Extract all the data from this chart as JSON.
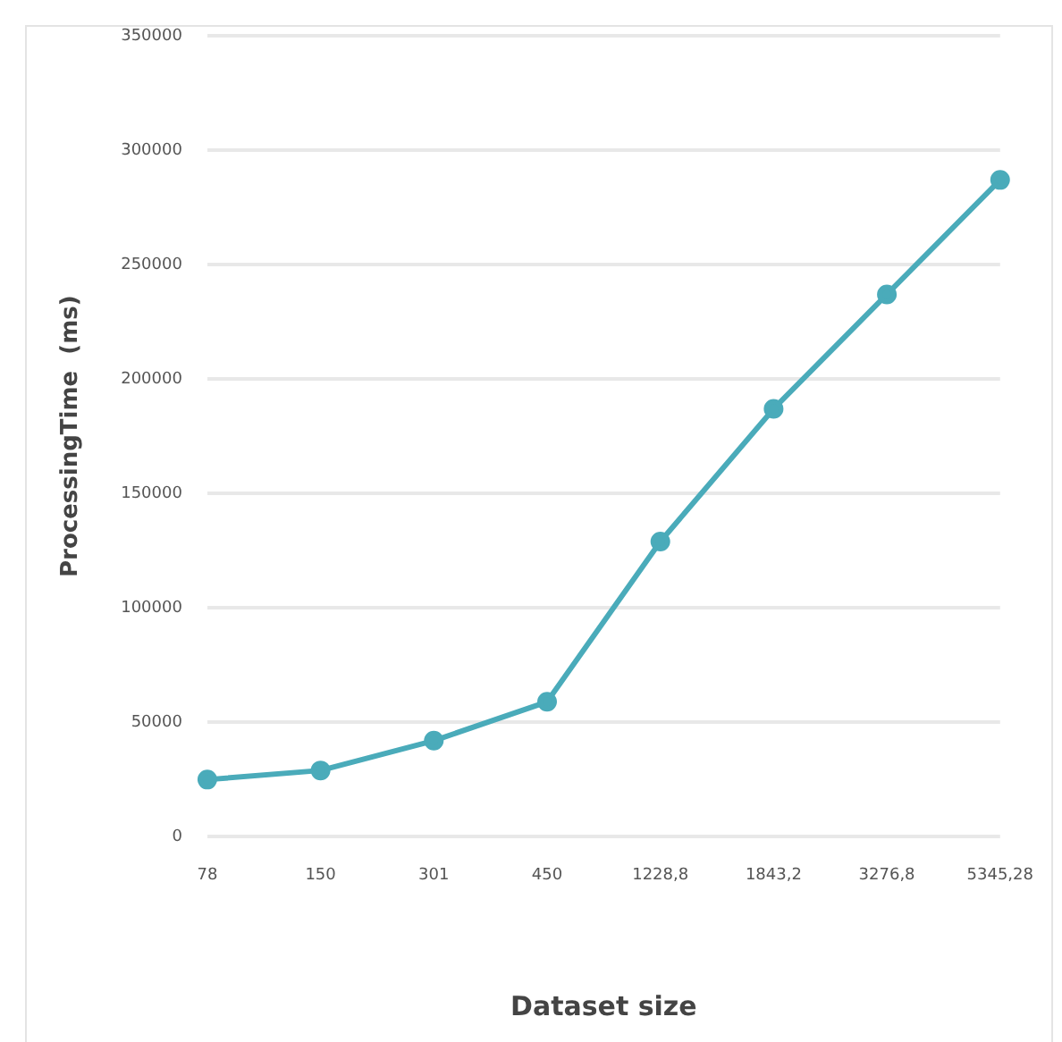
{
  "chart_data": {
    "type": "line",
    "xlabel": "Dataset size",
    "ylabel": "ProcessingTime  (ms)",
    "categories": [
      "78",
      "150",
      "301",
      "450",
      "1228,8",
      "1843,2",
      "3276,8",
      "5345,28"
    ],
    "series": [
      {
        "color": "#4aabba",
        "values": [
          25000,
          29000,
          42000,
          59000,
          129000,
          187000,
          237000,
          287000
        ]
      }
    ],
    "ylim": [
      0,
      350000
    ],
    "yticks": [
      0,
      50000,
      100000,
      150000,
      200000,
      250000,
      300000,
      350000
    ],
    "grid": "y",
    "legend": false,
    "marker": "circle",
    "line_style": "solid"
  }
}
